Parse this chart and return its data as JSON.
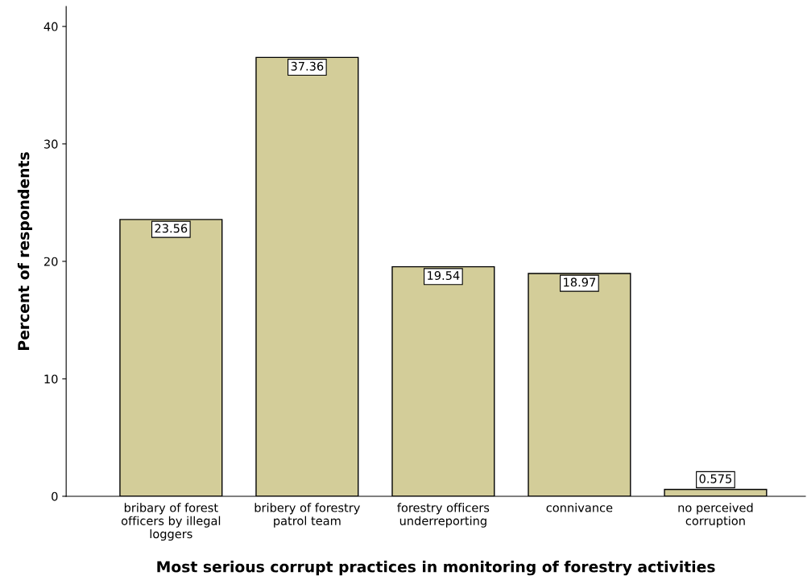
{
  "chart_data": {
    "type": "bar",
    "xlabel": "Most serious corrupt practices in monitoring of forestry activities",
    "ylabel": "Percent of respondents",
    "categories": [
      "bribary of forest\nofficers by illegal\nloggers",
      "bribery of forestry\npatrol team",
      "forestry officers\nunderreporting",
      "connivance",
      "no perceived\ncorruption"
    ],
    "values": [
      23.56,
      37.36,
      19.54,
      18.97,
      0.575
    ],
    "color": "#d3cd99",
    "ylim": [
      0,
      41.7
    ],
    "yticks": [
      0,
      10,
      20,
      30,
      40
    ],
    "grid": false,
    "data_labels": true
  }
}
